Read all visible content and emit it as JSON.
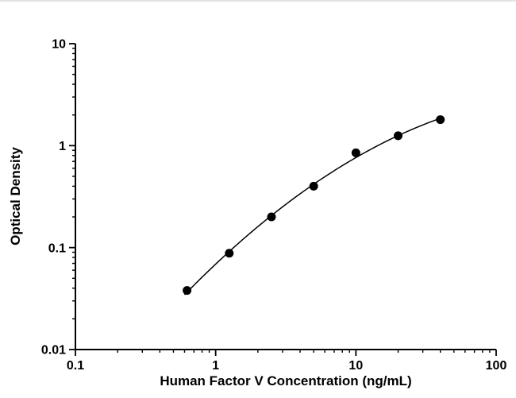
{
  "figure": {
    "description": "ELISA standard curve, log-log scatter plot with fitted curve"
  },
  "chart_data": {
    "type": "scatter",
    "title": "",
    "xlabel": "Human Factor V Concentration (ng/mL)",
    "ylabel": "Optical Density",
    "x_scale": "log",
    "y_scale": "log",
    "xlim": [
      0.1,
      100
    ],
    "ylim": [
      0.01,
      10
    ],
    "x_ticks": [
      0.1,
      1,
      10,
      100
    ],
    "y_ticks": [
      0.01,
      0.1,
      1,
      10
    ],
    "points": [
      {
        "x": 0.625,
        "y": 0.038
      },
      {
        "x": 1.25,
        "y": 0.088
      },
      {
        "x": 2.5,
        "y": 0.2
      },
      {
        "x": 5,
        "y": 0.4
      },
      {
        "x": 10,
        "y": 0.85
      },
      {
        "x": 20,
        "y": 1.25
      },
      {
        "x": 40,
        "y": 1.8
      }
    ],
    "fit_curve": {
      "type": "quadratic_loglog",
      "coefficients": {
        "a": -0.3783,
        "b": 0.9443,
        "c": -0.2532,
        "u0": 0.699
      },
      "x_range": [
        0.6,
        41
      ]
    },
    "grid": "off",
    "legend": "none",
    "marker_color": "#000000",
    "line_color": "#000000",
    "axis_color": "#000000"
  }
}
